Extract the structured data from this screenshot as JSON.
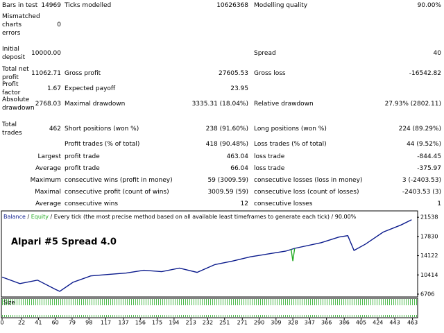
{
  "report": {
    "rows": [
      [
        "Bars in test",
        "14969",
        "Ticks modelled",
        "10626368",
        "Modelling quality",
        "90.00%"
      ],
      [
        "Mismatched charts errors",
        "0",
        null,
        null,
        null,
        null
      ],
      [
        "Initial deposit",
        "10000.00",
        null,
        null,
        "Spread",
        "40"
      ],
      [
        "Total net profit",
        "11062.71",
        "Gross profit",
        "27605.53",
        "Gross loss",
        "-16542.82"
      ],
      [
        "Profit factor",
        "1.67",
        "Expected payoff",
        "23.95",
        null,
        null
      ],
      [
        "Absolute drawdown",
        "2768.03",
        "Maximal drawdown",
        "3335.31 (18.04%)",
        "Relative drawdown",
        "27.93% (2802.11)"
      ],
      [
        "Total trades",
        "462",
        "Short positions (won %)",
        "238 (91.60%)",
        "Long positions (won %)",
        "224 (89.29%)"
      ],
      [
        null,
        null,
        "Profit trades (% of total)",
        "418 (90.48%)",
        "Loss trades (% of total)",
        "44 (9.52%)"
      ],
      [
        "Largest",
        null,
        "profit trade",
        "463.04",
        "loss trade",
        "-844.45"
      ],
      [
        "Average",
        null,
        "profit trade",
        "66.04",
        "loss trade",
        "-375.97"
      ],
      [
        "Maximum",
        null,
        "consecutive wins (profit in money)",
        "59 (3009.59)",
        "consecutive losses (loss in money)",
        "3 (-2403.53)"
      ],
      [
        "Maximal",
        null,
        "consecutive profit (count of wins)",
        "3009.59 (59)",
        "consecutive loss (count of losses)",
        "-2403.53 (3)"
      ],
      [
        "Average",
        null,
        "consecutive wins",
        "12",
        "consecutive losses",
        "1"
      ]
    ]
  },
  "chart_data": {
    "type": "line",
    "legend": [
      "Balance",
      "Equity",
      "Every tick (the most precise method based on all available least timeframes to generate each tick)",
      "90.00%"
    ],
    "annotation": "Alpari #5   Spread 4.0",
    "size_label": "Size",
    "series": [
      {
        "name": "Balance",
        "color": "#0a1a8c",
        "x": [
          0,
          20,
          40,
          60,
          65,
          80,
          100,
          120,
          140,
          160,
          180,
          200,
          220,
          240,
          260,
          280,
          300,
          320,
          330,
          360,
          380,
          390,
          397,
          410,
          430,
          450,
          462
        ],
        "values": [
          10000,
          8740,
          9400,
          7640,
          7232,
          8990,
          10220,
          10500,
          10770,
          11310,
          11040,
          11720,
          10900,
          12400,
          13090,
          13900,
          14450,
          15000,
          15540,
          16630,
          17720,
          17990,
          15130,
          16360,
          18680,
          20040,
          21063
        ]
      },
      {
        "name": "Equity",
        "color": "#22aa22",
        "x": [
          326,
          328,
          330
        ],
        "values": [
          15400,
          13090,
          15500
        ]
      }
    ],
    "xlim": [
      0,
      468
    ],
    "ylim": [
      6300,
      22630
    ],
    "xticks": [
      0,
      22,
      41,
      60,
      79,
      98,
      117,
      137,
      156,
      175,
      194,
      213,
      232,
      251,
      271,
      290,
      309,
      328,
      347,
      366,
      386,
      405,
      424,
      443,
      463
    ],
    "yticks": [
      6706,
      10414,
      14122,
      17830,
      21538
    ]
  }
}
